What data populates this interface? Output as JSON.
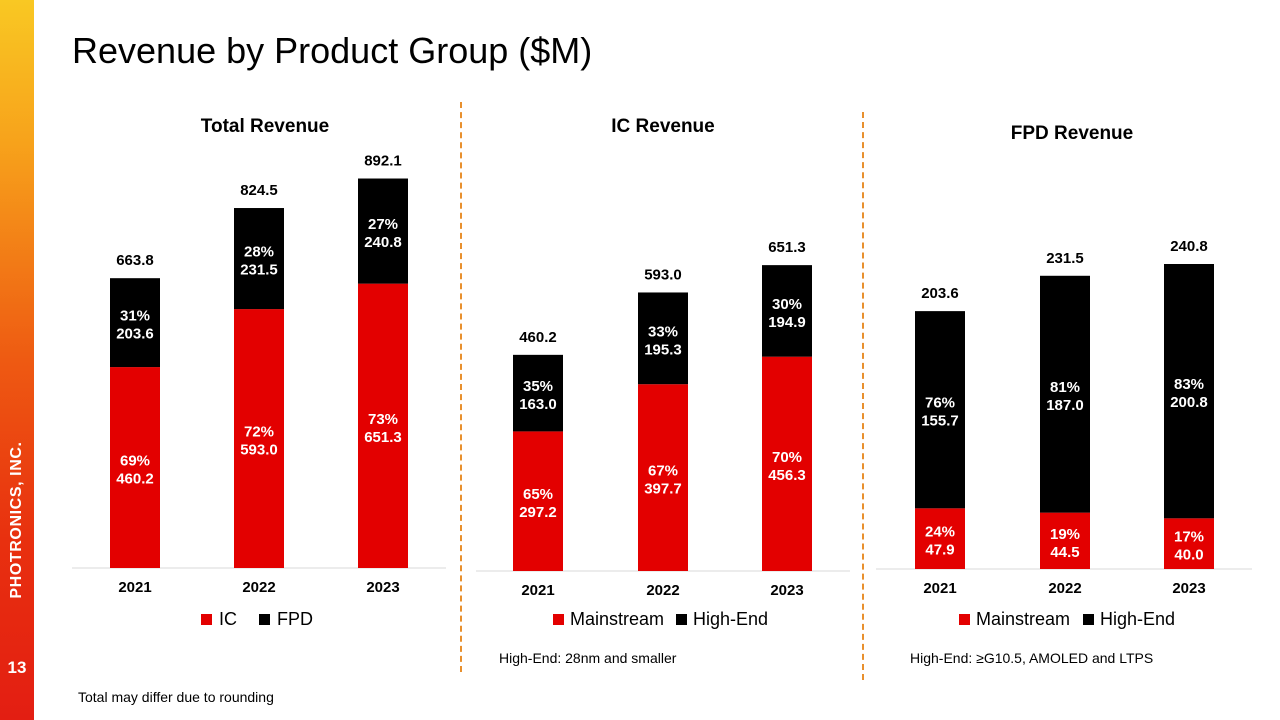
{
  "page": {
    "title": "Revenue by Product Group ($M)",
    "company": "PHOTRONICS, INC.",
    "page_number": "13",
    "footnote": "Total may differ due to rounding"
  },
  "colors": {
    "primary_series": "#e30000",
    "secondary_series": "#000000",
    "divider": "#e8902e"
  },
  "chart_data": [
    {
      "type": "bar",
      "stacked": true,
      "title": "Total Revenue",
      "categories": [
        "2021",
        "2022",
        "2023"
      ],
      "series": [
        {
          "name": "IC",
          "values": [
            460.2,
            593.0,
            651.3
          ],
          "percent_labels": [
            "69%",
            "72%",
            "73%"
          ],
          "value_labels": [
            "460.2",
            "593.0",
            "651.3"
          ],
          "color": "#e30000"
        },
        {
          "name": "FPD",
          "values": [
            203.6,
            231.5,
            240.8
          ],
          "percent_labels": [
            "31%",
            "28%",
            "27%"
          ],
          "value_labels": [
            "203.6",
            "231.5",
            "240.8"
          ],
          "color": "#000000"
        }
      ],
      "totals": [
        "663.8",
        "824.5",
        "892.1"
      ],
      "legend": "bottom",
      "note": ""
    },
    {
      "type": "bar",
      "stacked": true,
      "title": "IC Revenue",
      "categories": [
        "2021",
        "2022",
        "2023"
      ],
      "series": [
        {
          "name": "Mainstream",
          "values": [
            297.2,
            397.7,
            456.3
          ],
          "percent_labels": [
            "65%",
            "67%",
            "70%"
          ],
          "value_labels": [
            "297.2",
            "397.7",
            "456.3"
          ],
          "color": "#e30000"
        },
        {
          "name": "High-End",
          "values": [
            163.0,
            195.3,
            194.9
          ],
          "percent_labels": [
            "35%",
            "33%",
            "30%"
          ],
          "value_labels": [
            "163.0",
            "195.3",
            "194.9"
          ],
          "color": "#000000"
        }
      ],
      "totals": [
        "460.2",
        "593.0",
        "651.3"
      ],
      "legend": "bottom",
      "note": "High-End: 28nm and smaller"
    },
    {
      "type": "bar",
      "stacked": true,
      "title": "FPD Revenue",
      "categories": [
        "2021",
        "2022",
        "2023"
      ],
      "series": [
        {
          "name": "Mainstream",
          "values": [
            47.9,
            44.5,
            40.0
          ],
          "percent_labels": [
            "24%",
            "19%",
            "17%"
          ],
          "value_labels": [
            "47.9",
            "44.5",
            "40.0"
          ],
          "color": "#e30000"
        },
        {
          "name": "High-End",
          "values": [
            155.7,
            187.0,
            200.8
          ],
          "percent_labels": [
            "76%",
            "81%",
            "83%"
          ],
          "value_labels": [
            "155.7",
            "187.0",
            "200.8"
          ],
          "color": "#000000"
        }
      ],
      "totals": [
        "203.6",
        "231.5",
        "240.8"
      ],
      "legend": "bottom",
      "note": "High-End: ≥G10.5, AMOLED and LTPS"
    }
  ]
}
